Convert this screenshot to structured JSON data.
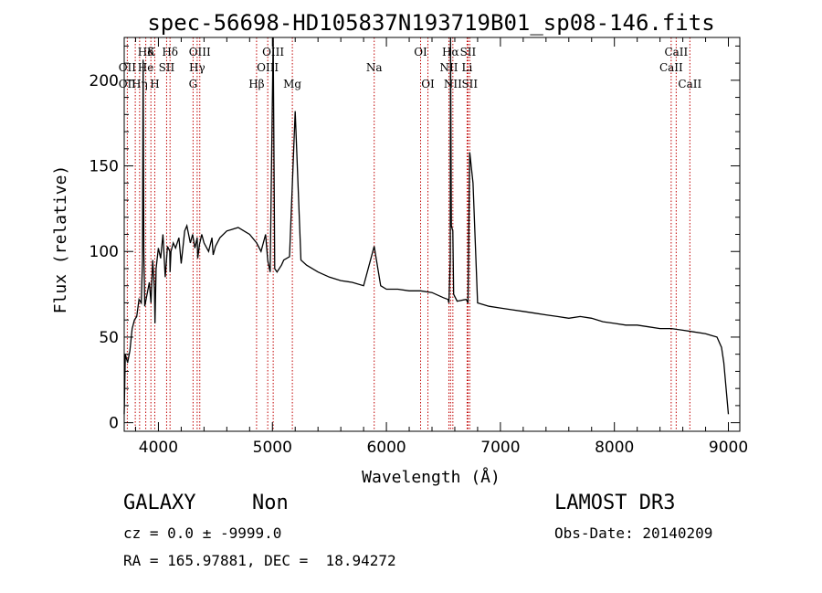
{
  "chart_data": {
    "type": "line",
    "title": "spec-56698-HD105837N193719B01_sp08-146.fits",
    "xlabel": "Wavelength (Å)",
    "ylabel": "Flux (relative)",
    "xlim": [
      3700,
      9100
    ],
    "ylim": [
      -5,
      225
    ],
    "xticks": [
      4000,
      5000,
      6000,
      7000,
      8000,
      9000
    ],
    "yticks": [
      0,
      50,
      100,
      150,
      200
    ],
    "series": [
      {
        "name": "spectrum",
        "x": [
          3700,
          3710,
          3730,
          3750,
          3770,
          3790,
          3810,
          3830,
          3850,
          3860,
          3866,
          3872,
          3880,
          3900,
          3920,
          3935,
          3950,
          3965,
          3970,
          3980,
          4000,
          4020,
          4040,
          4060,
          4080,
          4100,
          4102,
          4110,
          4130,
          4150,
          4180,
          4200,
          4230,
          4250,
          4280,
          4300,
          4320,
          4340,
          4345,
          4360,
          4380,
          4400,
          4440,
          4470,
          4480,
          4500,
          4540,
          4600,
          4700,
          4800,
          4862,
          4900,
          4940,
          4959,
          4980,
          5007,
          5020,
          5040,
          5080,
          5100,
          5150,
          5200,
          5250,
          5300,
          5400,
          5500,
          5600,
          5700,
          5800,
          5893,
          5950,
          6000,
          6100,
          6200,
          6300,
          6400,
          6500,
          6540,
          6548,
          6560,
          6563,
          6570,
          6583,
          6590,
          6620,
          6700,
          6716,
          6731,
          6760,
          6800,
          6900,
          7000,
          7100,
          7200,
          7300,
          7400,
          7500,
          7600,
          7700,
          7800,
          7900,
          8000,
          8100,
          8200,
          8300,
          8400,
          8500,
          8600,
          8700,
          8800,
          8850,
          8900,
          8940,
          8960,
          8980,
          9000
        ],
        "y": [
          5,
          40,
          35,
          42,
          55,
          60,
          62,
          72,
          70,
          95,
          212,
          100,
          68,
          75,
          82,
          70,
          95,
          78,
          58,
          90,
          102,
          96,
          110,
          85,
          103,
          100,
          88,
          100,
          105,
          102,
          108,
          93,
          112,
          115,
          105,
          110,
          102,
          108,
          96,
          104,
          110,
          105,
          100,
          108,
          98,
          103,
          108,
          112,
          114,
          110,
          105,
          100,
          110,
          95,
          88,
          228,
          90,
          88,
          92,
          95,
          97,
          182,
          95,
          92,
          88,
          85,
          83,
          82,
          80,
          103,
          80,
          78,
          78,
          77,
          77,
          76,
          73,
          72,
          70,
          95,
          226,
          115,
          112,
          75,
          71,
          72,
          70,
          158,
          140,
          70,
          68,
          67,
          66,
          65,
          64,
          63,
          62,
          61,
          62,
          61,
          59,
          58,
          57,
          57,
          56,
          55,
          55,
          54,
          53,
          52,
          51,
          50,
          44,
          35,
          20,
          5
        ]
      }
    ],
    "line_labels": [
      {
        "text": "OII",
        "x": 3727,
        "row": 1
      },
      {
        "text": "OII",
        "x": 3727,
        "row": 2
      },
      {
        "text": "Hδ",
        "x": 3889,
        "row": 0
      },
      {
        "text": "He",
        "x": 3889,
        "row": 1
      },
      {
        "text": "Hη",
        "x": 3835,
        "row": 2
      },
      {
        "text": "K",
        "x": 3934,
        "row": 0
      },
      {
        "text": "H",
        "x": 3968,
        "row": 2
      },
      {
        "text": "Hδ",
        "x": 4102,
        "row": 0
      },
      {
        "text": "SII",
        "x": 4072,
        "row": 1
      },
      {
        "text": "OIII",
        "x": 4363,
        "row": 0
      },
      {
        "text": "Hγ",
        "x": 4340,
        "row": 1
      },
      {
        "text": "G",
        "x": 4304,
        "row": 2
      },
      {
        "text": "Hβ",
        "x": 4861,
        "row": 2
      },
      {
        "text": "OIII",
        "x": 5007,
        "row": 0
      },
      {
        "text": "OIII",
        "x": 4959,
        "row": 1
      },
      {
        "text": "Mg",
        "x": 5175,
        "row": 2
      },
      {
        "text": "Na",
        "x": 5893,
        "row": 1
      },
      {
        "text": "OI",
        "x": 6300,
        "row": 0
      },
      {
        "text": "OI",
        "x": 6364,
        "row": 2
      },
      {
        "text": "Hα",
        "x": 6563,
        "row": 0
      },
      {
        "text": "NII",
        "x": 6548,
        "row": 1
      },
      {
        "text": "NII",
        "x": 6583,
        "row": 2
      },
      {
        "text": "SII",
        "x": 6716,
        "row": 0
      },
      {
        "text": "Li",
        "x": 6708,
        "row": 1
      },
      {
        "text": "SII",
        "x": 6731,
        "row": 2
      },
      {
        "text": "CaII",
        "x": 8542,
        "row": 0
      },
      {
        "text": "CaII",
        "x": 8498,
        "row": 1
      },
      {
        "text": "CaII",
        "x": 8662,
        "row": 2
      }
    ],
    "line_marks": [
      3727,
      3797,
      3835,
      3889,
      3934,
      3968,
      4072,
      4102,
      4304,
      4340,
      4363,
      4861,
      4959,
      5007,
      5175,
      5893,
      6300,
      6364,
      6548,
      6563,
      6583,
      6708,
      6716,
      6731,
      8498,
      8542,
      8662
    ]
  },
  "info": {
    "classification": "GALAXY",
    "subclass": "Non",
    "survey": "LAMOST DR3",
    "cz": "cz = 0.0 ± -9999.0",
    "obs_date": "Obs-Date: 20140209",
    "coords": "RA = 165.97881, DEC =  18.94272"
  },
  "colors": {
    "axis": "#000000",
    "line": "#000000",
    "marker": "#c00000",
    "background": "#ffffff"
  }
}
